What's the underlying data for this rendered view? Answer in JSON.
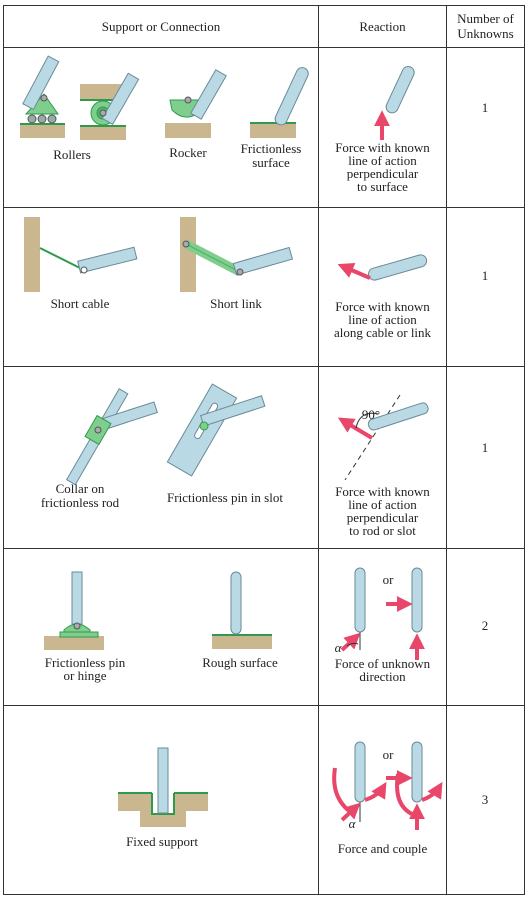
{
  "header": {
    "support": "Support or Connection",
    "reaction": "Reaction",
    "unknowns_line1": "Number of",
    "unknowns_line2": "Unknowns"
  },
  "rows": [
    {
      "labels": [
        "Rollers",
        "Rocker",
        "Frictionless",
        "surface"
      ],
      "reaction": [
        "Force with known",
        "line of action",
        "perpendicular",
        "to surface"
      ],
      "unknowns": "1"
    },
    {
      "labels": [
        "Short cable",
        "Short link"
      ],
      "reaction": [
        "Force with known",
        "line of action",
        "along cable or link"
      ],
      "unknowns": "1"
    },
    {
      "labels": [
        "Collar on",
        "frictionless rod",
        "Frictionless pin in slot"
      ],
      "angle": "90°",
      "reaction": [
        "Force with known",
        "line of action",
        "perpendicular",
        "to rod or slot"
      ],
      "unknowns": "1"
    },
    {
      "labels": [
        "Frictionless pin",
        "or hinge",
        "Rough surface"
      ],
      "or": "or",
      "alpha": "α",
      "reaction": [
        "Force of unknown",
        "direction"
      ],
      "unknowns": "2"
    },
    {
      "labels": [
        "Fixed support"
      ],
      "or": "or",
      "alpha": "α",
      "reaction": [
        "Force and couple"
      ],
      "unknowns": "3"
    }
  ],
  "colors": {
    "support_green": "#7fce8e",
    "green_dark": "#2f9a4c",
    "wall_tan": "#cbb78f",
    "rod_blue": "#b9d9e4",
    "force_pink": "#e8476a"
  }
}
